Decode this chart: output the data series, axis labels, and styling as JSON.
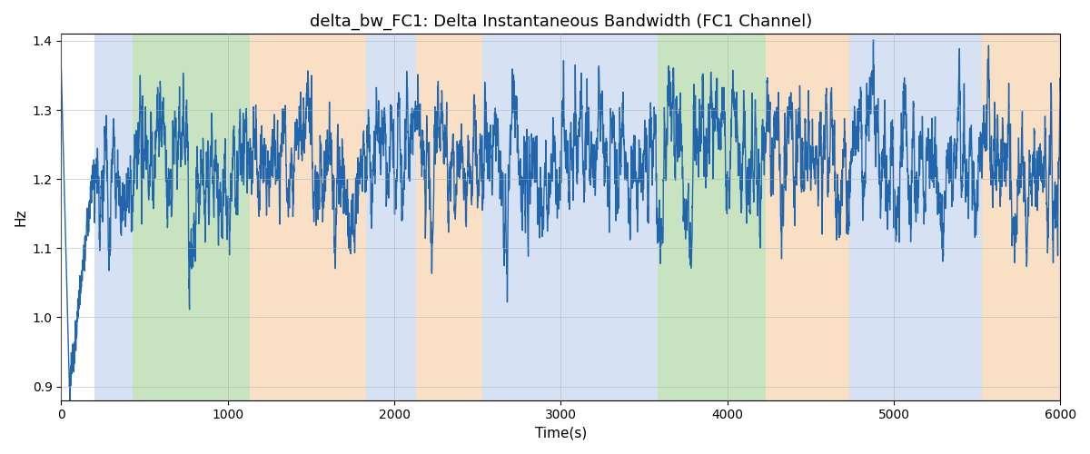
{
  "title": "delta_bw_FC1: Delta Instantaneous Bandwidth (FC1 Channel)",
  "xlabel": "Time(s)",
  "ylabel": "Hz",
  "xlim": [
    0,
    6000
  ],
  "ylim": [
    0.88,
    1.41
  ],
  "yticks": [
    0.9,
    1.0,
    1.1,
    1.2,
    1.3,
    1.4
  ],
  "xticks": [
    0,
    1000,
    2000,
    3000,
    4000,
    5000,
    6000
  ],
  "line_color": "#2166ac",
  "line_width": 1.0,
  "background_color": "#ffffff",
  "grid_color": "#b0b0b0",
  "bands": [
    {
      "xmin": 200,
      "xmax": 430,
      "color": "#aec6e8",
      "alpha": 0.5
    },
    {
      "xmin": 430,
      "xmax": 1130,
      "color": "#90c980",
      "alpha": 0.5
    },
    {
      "xmin": 1130,
      "xmax": 1830,
      "color": "#f4c08a",
      "alpha": 0.5
    },
    {
      "xmin": 1830,
      "xmax": 2130,
      "color": "#aec6e8",
      "alpha": 0.5
    },
    {
      "xmin": 2130,
      "xmax": 2530,
      "color": "#f4c08a",
      "alpha": 0.5
    },
    {
      "xmin": 2530,
      "xmax": 3430,
      "color": "#aec6e8",
      "alpha": 0.5
    },
    {
      "xmin": 3430,
      "xmax": 3580,
      "color": "#aec6e8",
      "alpha": 0.5
    },
    {
      "xmin": 3580,
      "xmax": 4230,
      "color": "#90c980",
      "alpha": 0.5
    },
    {
      "xmin": 4230,
      "xmax": 4730,
      "color": "#f4c08a",
      "alpha": 0.5
    },
    {
      "xmin": 4730,
      "xmax": 5530,
      "color": "#aec6e8",
      "alpha": 0.5
    },
    {
      "xmin": 5530,
      "xmax": 6000,
      "color": "#f4c08a",
      "alpha": 0.5
    }
  ],
  "seed": 42,
  "n_points": 6000
}
